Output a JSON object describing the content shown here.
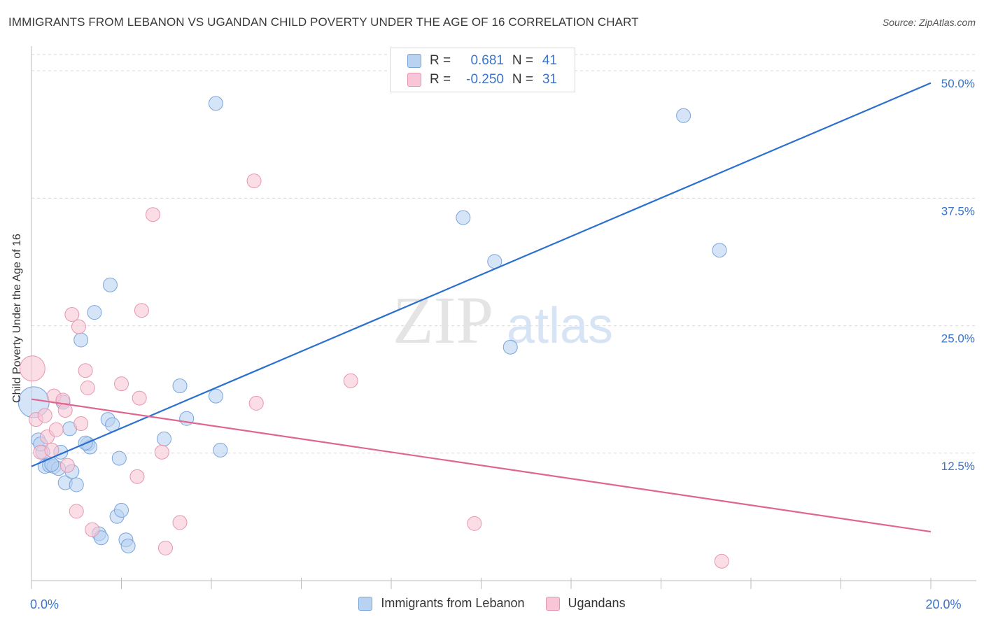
{
  "title": "IMMIGRANTS FROM LEBANON VS UGANDAN CHILD POVERTY UNDER THE AGE OF 16 CORRELATION CHART",
  "source": "Source: ZipAtlas.com",
  "watermark": {
    "zip": "ZIP",
    "atlas": "atlas"
  },
  "legend": {
    "rows": [
      {
        "r_label": "R =",
        "r_value": "0.681",
        "n_label": "N =",
        "n_value": "41"
      },
      {
        "r_label": "R =",
        "r_value": "-0.250",
        "n_label": "N =",
        "n_value": "31"
      }
    ]
  },
  "colors": {
    "blue_fill": "#b9d2f2",
    "blue_stroke": "#7aa5db",
    "blue_line": "#2b6fcf",
    "pink_fill": "#f8c6d6",
    "pink_stroke": "#e895b1",
    "pink_line": "#e0668f",
    "axis_text": "#3b74c9",
    "grid": "#d9d9d9"
  },
  "chart_data": {
    "type": "scatter",
    "xlabel": "",
    "ylabel": "Child Poverty Under the Age of 16",
    "xlim": [
      0,
      20
    ],
    "ylim": [
      0,
      52
    ],
    "x_tick_labels": [
      {
        "value": 0,
        "label": "0.0%"
      },
      {
        "value": 20,
        "label": "20.0%"
      }
    ],
    "y_tick_labels": [
      {
        "value": 12.5,
        "label": "12.5%"
      },
      {
        "value": 25,
        "label": "25.0%"
      },
      {
        "value": 37.5,
        "label": "37.5%"
      },
      {
        "value": 50,
        "label": "50.0%"
      }
    ],
    "series": [
      {
        "name": "Immigrants from Lebanon",
        "color_key": "blue",
        "trend": {
          "x": [
            0,
            20
          ],
          "y": [
            11.2,
            48.8
          ]
        },
        "points": [
          [
            0.05,
            17.5,
            22
          ],
          [
            0.15,
            13.8,
            10
          ],
          [
            0.25,
            12.6,
            10
          ],
          [
            0.3,
            11.2,
            10
          ],
          [
            0.4,
            11.3,
            10
          ],
          [
            0.5,
            11.2,
            10
          ],
          [
            0.6,
            11.0,
            10
          ],
          [
            0.65,
            12.6,
            10
          ],
          [
            0.7,
            17.5,
            10
          ],
          [
            0.75,
            9.6,
            10
          ],
          [
            0.85,
            14.9,
            10
          ],
          [
            0.9,
            10.7,
            10
          ],
          [
            1.0,
            9.4,
            10
          ],
          [
            1.1,
            23.6,
            10
          ],
          [
            1.25,
            13.4,
            10
          ],
          [
            1.3,
            13.1,
            10
          ],
          [
            1.4,
            26.3,
            10
          ],
          [
            1.5,
            4.6,
            10
          ],
          [
            1.55,
            4.2,
            10
          ],
          [
            1.7,
            15.8,
            10
          ],
          [
            1.75,
            29.0,
            10
          ],
          [
            1.8,
            15.3,
            10
          ],
          [
            1.9,
            6.3,
            10
          ],
          [
            1.95,
            12.0,
            10
          ],
          [
            2.0,
            6.9,
            10
          ],
          [
            2.1,
            4.0,
            10
          ],
          [
            2.15,
            3.4,
            10
          ],
          [
            2.95,
            13.9,
            10
          ],
          [
            3.3,
            19.1,
            10
          ],
          [
            3.45,
            15.9,
            10
          ],
          [
            4.1,
            46.8,
            10
          ],
          [
            4.1,
            18.1,
            10
          ],
          [
            4.2,
            12.8,
            10
          ],
          [
            9.6,
            35.6,
            10
          ],
          [
            10.3,
            31.3,
            10
          ],
          [
            10.65,
            22.9,
            10
          ],
          [
            14.5,
            45.6,
            10
          ],
          [
            15.3,
            32.4,
            10
          ],
          [
            0.2,
            13.4,
            10
          ],
          [
            0.45,
            11.4,
            10
          ],
          [
            1.2,
            13.5,
            10
          ]
        ]
      },
      {
        "name": "Ugandans",
        "color_key": "pink",
        "trend": {
          "x": [
            0,
            20
          ],
          "y": [
            17.8,
            4.8
          ]
        },
        "points": [
          [
            0.02,
            20.8,
            18
          ],
          [
            0.1,
            15.8,
            10
          ],
          [
            0.2,
            12.6,
            10
          ],
          [
            0.3,
            16.2,
            10
          ],
          [
            0.35,
            14.1,
            10
          ],
          [
            0.45,
            12.8,
            10
          ],
          [
            0.5,
            18.1,
            10
          ],
          [
            0.55,
            14.8,
            10
          ],
          [
            0.7,
            17.7,
            10
          ],
          [
            0.75,
            16.7,
            10
          ],
          [
            0.8,
            11.3,
            10
          ],
          [
            0.9,
            26.1,
            10
          ],
          [
            1.0,
            6.8,
            10
          ],
          [
            1.05,
            24.9,
            10
          ],
          [
            1.1,
            15.4,
            10
          ],
          [
            1.2,
            20.6,
            10
          ],
          [
            1.25,
            18.9,
            10
          ],
          [
            1.35,
            5.0,
            10
          ],
          [
            2.0,
            19.3,
            10
          ],
          [
            2.35,
            10.2,
            10
          ],
          [
            2.4,
            17.9,
            10
          ],
          [
            2.45,
            26.5,
            10
          ],
          [
            2.7,
            35.9,
            10
          ],
          [
            2.9,
            12.6,
            10
          ],
          [
            2.98,
            3.2,
            10
          ],
          [
            3.3,
            5.7,
            10
          ],
          [
            4.95,
            39.2,
            10
          ],
          [
            5.0,
            17.4,
            10
          ],
          [
            7.1,
            19.6,
            10
          ],
          [
            9.85,
            5.6,
            10
          ],
          [
            15.35,
            1.9,
            10
          ]
        ]
      }
    ]
  }
}
